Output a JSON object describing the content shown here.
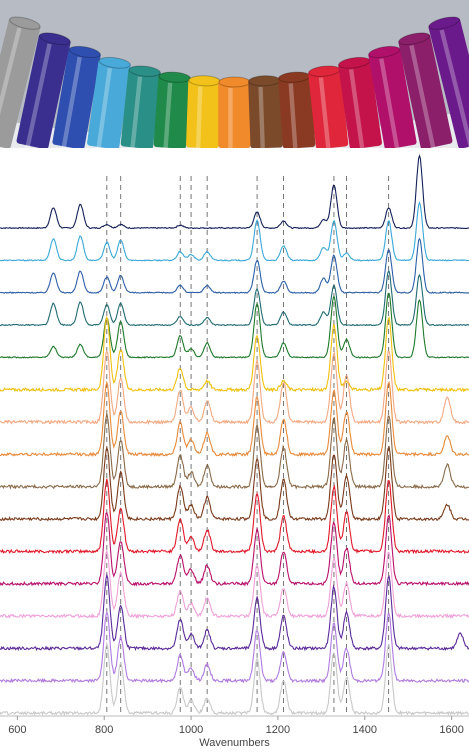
{
  "photo": {
    "caption": "",
    "marker_colors": [
      "#9b9b9b",
      "#3a2f8f",
      "#2f4fb0",
      "#49a9d8",
      "#2a8f87",
      "#1f8a4a",
      "#f2c21a",
      "#f08a2a",
      "#7a4a2a",
      "#8a3a22",
      "#e0263a",
      "#c4134a",
      "#b0106a",
      "#8b1f6a",
      "#6a1a8a"
    ],
    "background_color": "#b7bcc4"
  },
  "chart_data": {
    "type": "line",
    "title": "",
    "xlabel": "Wavenumbers",
    "ylabel": "",
    "xlim": [
      560,
      1640
    ],
    "xticks": [
      600,
      800,
      1000,
      1200,
      1400,
      1600
    ],
    "grid": false,
    "legend": "none",
    "dashed_reference_lines": [
      806,
      838,
      975,
      1000,
      1037,
      1152,
      1213,
      1329,
      1358,
      1455
    ],
    "stacked_offsets": true,
    "series": [
      {
        "color": "#14205a",
        "peaks": [
          [
            683,
            0.28
          ],
          [
            745,
            0.33
          ],
          [
            806,
            0.05
          ],
          [
            838,
            0.05
          ],
          [
            975,
            0.04
          ],
          [
            1152,
            0.22
          ],
          [
            1213,
            0.1
          ],
          [
            1305,
            0.12
          ],
          [
            1329,
            0.6
          ],
          [
            1455,
            0.28
          ],
          [
            1526,
            1.0
          ]
        ]
      },
      {
        "color": "#3aa8d8",
        "peaks": [
          [
            683,
            0.3
          ],
          [
            745,
            0.34
          ],
          [
            806,
            0.25
          ],
          [
            838,
            0.28
          ],
          [
            975,
            0.12
          ],
          [
            1000,
            0.08
          ],
          [
            1037,
            0.12
          ],
          [
            1152,
            0.55
          ],
          [
            1213,
            0.2
          ],
          [
            1305,
            0.18
          ],
          [
            1329,
            0.55
          ],
          [
            1358,
            0.1
          ],
          [
            1455,
            0.55
          ],
          [
            1526,
            0.8
          ]
        ]
      },
      {
        "color": "#2c5fa8",
        "peaks": [
          [
            683,
            0.28
          ],
          [
            745,
            0.3
          ],
          [
            806,
            0.22
          ],
          [
            838,
            0.24
          ],
          [
            975,
            0.1
          ],
          [
            1037,
            0.1
          ],
          [
            1152,
            0.45
          ],
          [
            1213,
            0.16
          ],
          [
            1305,
            0.2
          ],
          [
            1329,
            0.52
          ],
          [
            1455,
            0.6
          ],
          [
            1526,
            0.75
          ]
        ]
      },
      {
        "color": "#1f6a72",
        "peaks": [
          [
            683,
            0.3
          ],
          [
            745,
            0.32
          ],
          [
            806,
            0.28
          ],
          [
            838,
            0.3
          ],
          [
            975,
            0.12
          ],
          [
            1037,
            0.1
          ],
          [
            1152,
            0.5
          ],
          [
            1213,
            0.18
          ],
          [
            1305,
            0.18
          ],
          [
            1329,
            0.55
          ],
          [
            1455,
            0.75
          ],
          [
            1526,
            0.7
          ]
        ]
      },
      {
        "color": "#1e7a2a",
        "peaks": [
          [
            683,
            0.15
          ],
          [
            745,
            0.18
          ],
          [
            806,
            0.55
          ],
          [
            838,
            0.5
          ],
          [
            975,
            0.3
          ],
          [
            1000,
            0.12
          ],
          [
            1037,
            0.2
          ],
          [
            1152,
            0.75
          ],
          [
            1213,
            0.2
          ],
          [
            1329,
            0.85
          ],
          [
            1358,
            0.25
          ],
          [
            1455,
            0.9
          ],
          [
            1526,
            0.8
          ]
        ]
      },
      {
        "color": "#f0c010",
        "peaks": [
          [
            806,
            1.0
          ],
          [
            838,
            0.55
          ],
          [
            975,
            0.3
          ],
          [
            1037,
            0.12
          ],
          [
            1152,
            0.75
          ],
          [
            1213,
            0.12
          ],
          [
            1329,
            0.9
          ],
          [
            1358,
            0.12
          ],
          [
            1455,
            1.0
          ]
        ]
      },
      {
        "color": "#f2a880",
        "peaks": [
          [
            806,
            1.0
          ],
          [
            838,
            0.6
          ],
          [
            975,
            0.45
          ],
          [
            1000,
            0.2
          ],
          [
            1037,
            0.3
          ],
          [
            1152,
            0.85
          ],
          [
            1213,
            0.55
          ],
          [
            1329,
            0.95
          ],
          [
            1358,
            0.65
          ],
          [
            1455,
            1.0
          ],
          [
            1590,
            0.35
          ]
        ]
      },
      {
        "color": "#e88a3a",
        "peaks": [
          [
            806,
            1.0
          ],
          [
            838,
            0.6
          ],
          [
            975,
            0.45
          ],
          [
            1000,
            0.2
          ],
          [
            1037,
            0.3
          ],
          [
            1152,
            0.8
          ],
          [
            1213,
            0.5
          ],
          [
            1329,
            0.9
          ],
          [
            1358,
            0.6
          ],
          [
            1455,
            1.0
          ],
          [
            1590,
            0.25
          ]
        ]
      },
      {
        "color": "#8a6a48",
        "peaks": [
          [
            806,
            1.0
          ],
          [
            838,
            0.65
          ],
          [
            975,
            0.45
          ],
          [
            1000,
            0.2
          ],
          [
            1037,
            0.3
          ],
          [
            1152,
            0.85
          ],
          [
            1213,
            0.55
          ],
          [
            1329,
            0.95
          ],
          [
            1358,
            0.65
          ],
          [
            1455,
            1.0
          ],
          [
            1590,
            0.3
          ]
        ]
      },
      {
        "color": "#7a3a1a",
        "peaks": [
          [
            806,
            1.0
          ],
          [
            838,
            0.65
          ],
          [
            975,
            0.45
          ],
          [
            1000,
            0.2
          ],
          [
            1037,
            0.3
          ],
          [
            1152,
            0.85
          ],
          [
            1213,
            0.55
          ],
          [
            1329,
            0.9
          ],
          [
            1358,
            0.6
          ],
          [
            1455,
            1.0
          ],
          [
            1590,
            0.2
          ]
        ]
      },
      {
        "color": "#e01828",
        "peaks": [
          [
            806,
            1.0
          ],
          [
            838,
            0.6
          ],
          [
            975,
            0.45
          ],
          [
            1000,
            0.2
          ],
          [
            1037,
            0.3
          ],
          [
            1152,
            0.8
          ],
          [
            1213,
            0.5
          ],
          [
            1329,
            0.9
          ],
          [
            1358,
            0.55
          ],
          [
            1455,
            1.0
          ]
        ]
      },
      {
        "color": "#b8106a",
        "peaks": [
          [
            806,
            1.0
          ],
          [
            838,
            0.6
          ],
          [
            975,
            0.4
          ],
          [
            1000,
            0.2
          ],
          [
            1037,
            0.25
          ],
          [
            1152,
            0.75
          ],
          [
            1213,
            0.45
          ],
          [
            1329,
            0.85
          ],
          [
            1358,
            0.5
          ],
          [
            1455,
            0.95
          ]
        ]
      },
      {
        "color": "#f0a0d8",
        "peaks": [
          [
            806,
            0.9
          ],
          [
            838,
            0.6
          ],
          [
            975,
            0.35
          ],
          [
            1000,
            0.18
          ],
          [
            1037,
            0.25
          ],
          [
            1152,
            0.7
          ],
          [
            1213,
            0.4
          ],
          [
            1329,
            0.8
          ],
          [
            1358,
            0.45
          ],
          [
            1455,
            0.9
          ]
        ]
      },
      {
        "color": "#5a2a9a",
        "peaks": [
          [
            806,
            1.0
          ],
          [
            838,
            0.6
          ],
          [
            975,
            0.4
          ],
          [
            1000,
            0.2
          ],
          [
            1037,
            0.25
          ],
          [
            1152,
            0.7
          ],
          [
            1213,
            0.45
          ],
          [
            1329,
            0.85
          ],
          [
            1358,
            0.5
          ],
          [
            1455,
            1.0
          ],
          [
            1620,
            0.2
          ]
        ]
      },
      {
        "color": "#b07ae0",
        "peaks": [
          [
            806,
            0.95
          ],
          [
            838,
            0.6
          ],
          [
            975,
            0.35
          ],
          [
            1000,
            0.18
          ],
          [
            1037,
            0.22
          ],
          [
            1152,
            0.7
          ],
          [
            1213,
            0.4
          ],
          [
            1329,
            0.8
          ],
          [
            1358,
            0.45
          ],
          [
            1455,
            0.95
          ]
        ]
      },
      {
        "color": "#c8c8c8",
        "peaks": [
          [
            806,
            0.95
          ],
          [
            838,
            0.7
          ],
          [
            975,
            0.35
          ],
          [
            1000,
            0.18
          ],
          [
            1037,
            0.2
          ],
          [
            1152,
            0.75
          ],
          [
            1213,
            0.45
          ],
          [
            1329,
            0.85
          ],
          [
            1358,
            0.5
          ],
          [
            1455,
            0.95
          ]
        ]
      }
    ]
  }
}
